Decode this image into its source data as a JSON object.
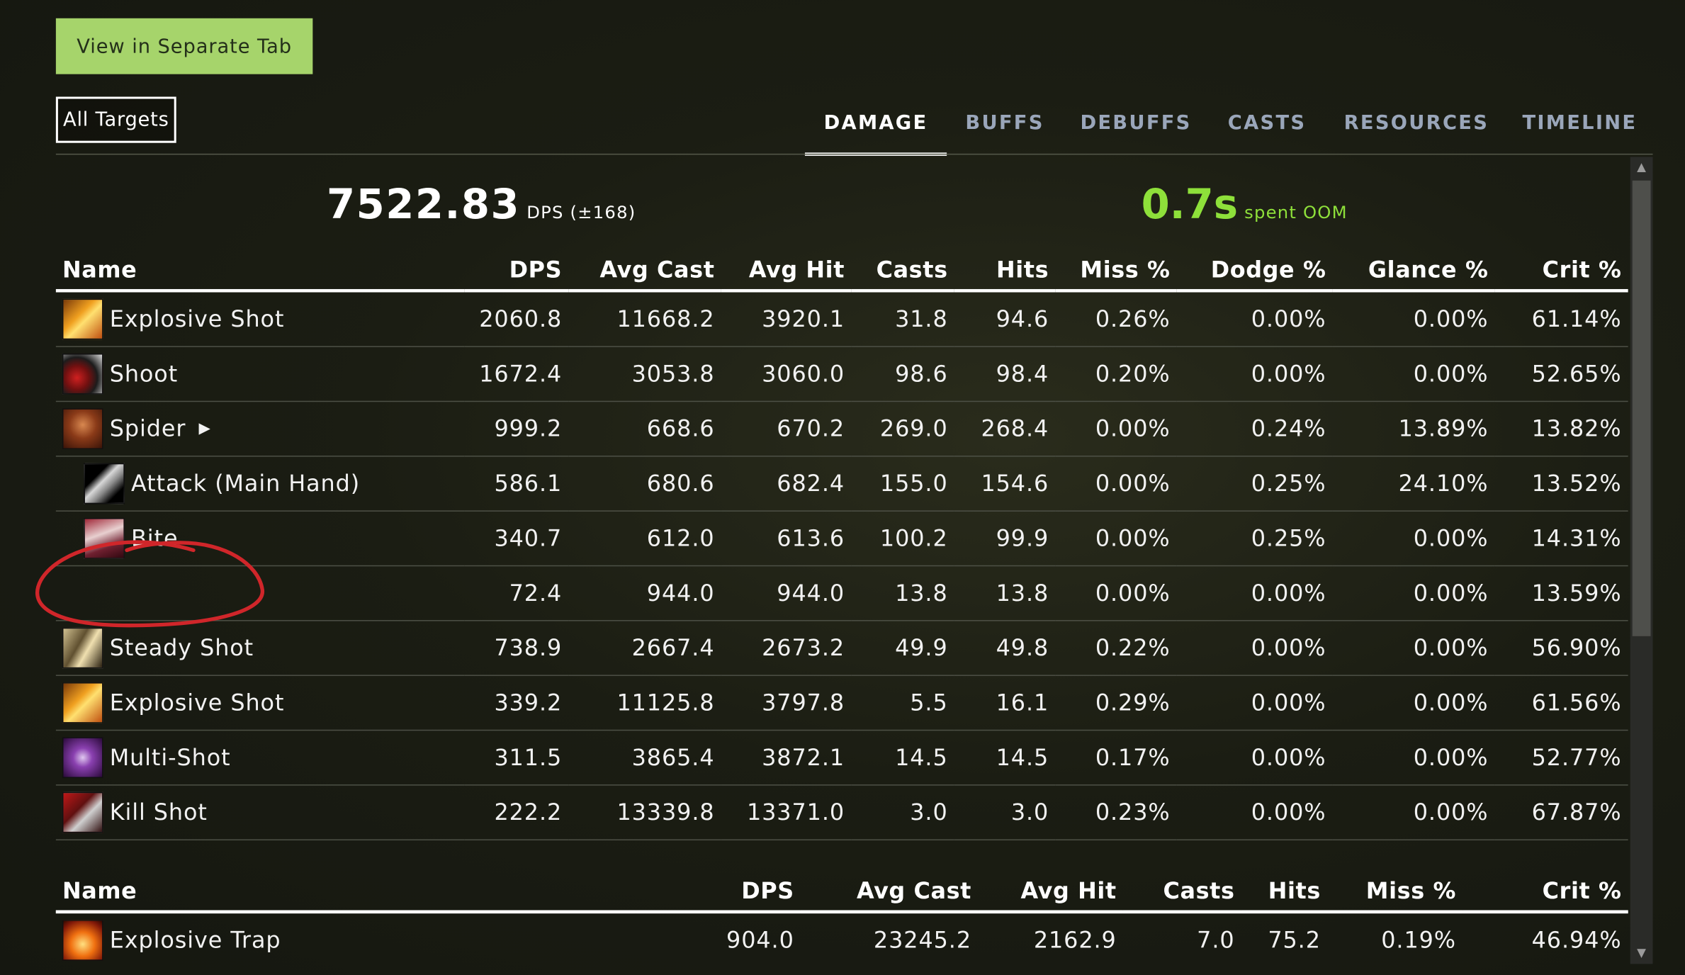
{
  "header": {
    "separate_tab_label": "View in Separate Tab",
    "target_select": "All Targets"
  },
  "tabs": [
    {
      "label": "DAMAGE",
      "active": true
    },
    {
      "label": "BUFFS",
      "active": false
    },
    {
      "label": "DEBUFFS",
      "active": false
    },
    {
      "label": "CASTS",
      "active": false
    },
    {
      "label": "RESOURCES",
      "active": false
    },
    {
      "label": "TIMELINE",
      "active": false
    }
  ],
  "summary": {
    "dps": "7522.83",
    "dps_suffix": "DPS (±168)",
    "oom": "0.7s",
    "oom_suffix": "spent OOM"
  },
  "colors": {
    "accent_button": "#a6d46b",
    "oom_green": "#8ee03a",
    "annotation_red": "#d0262a"
  },
  "damage_table": {
    "columns": [
      "Name",
      "DPS",
      "Avg Cast",
      "Avg Hit",
      "Casts",
      "Hits",
      "Miss %",
      "Dodge %",
      "Glance %",
      "Crit %"
    ],
    "rows": [
      {
        "name": "Explosive Shot",
        "icon": "explosive-shot-icon",
        "cells": [
          "2060.8",
          "11668.2",
          "3920.1",
          "31.8",
          "94.6",
          "0.26%",
          "0.00%",
          "0.00%",
          "61.14%"
        ]
      },
      {
        "name": "Shoot",
        "icon": "shoot-icon",
        "cells": [
          "1672.4",
          "3053.8",
          "3060.0",
          "98.6",
          "98.4",
          "0.20%",
          "0.00%",
          "0.00%",
          "52.65%"
        ]
      },
      {
        "name": "Spider",
        "icon": "spider-pet-icon",
        "expand": "▶",
        "cells": [
          "999.2",
          "668.6",
          "670.2",
          "269.0",
          "268.4",
          "0.00%",
          "0.24%",
          "13.89%",
          "13.82%"
        ]
      },
      {
        "name": "Attack (Main Hand)",
        "icon": "sword-attack-icon",
        "sub": true,
        "cells": [
          "586.1",
          "680.6",
          "682.4",
          "155.0",
          "154.6",
          "0.00%",
          "0.25%",
          "24.10%",
          "13.52%"
        ]
      },
      {
        "name": "Bite",
        "icon": "bite-icon",
        "sub": true,
        "cells": [
          "340.7",
          "612.0",
          "613.6",
          "100.2",
          "99.9",
          "0.00%",
          "0.25%",
          "0.00%",
          "14.31%"
        ]
      },
      {
        "name": "",
        "icon": "",
        "cells": [
          "72.4",
          "944.0",
          "944.0",
          "13.8",
          "13.8",
          "0.00%",
          "0.00%",
          "0.00%",
          "13.59%"
        ]
      },
      {
        "name": "Steady Shot",
        "icon": "steady-shot-icon",
        "cells": [
          "738.9",
          "2667.4",
          "2673.2",
          "49.9",
          "49.8",
          "0.22%",
          "0.00%",
          "0.00%",
          "56.90%"
        ]
      },
      {
        "name": "Explosive Shot",
        "icon": "explosive-shot-icon",
        "cells": [
          "339.2",
          "11125.8",
          "3797.8",
          "5.5",
          "16.1",
          "0.29%",
          "0.00%",
          "0.00%",
          "61.56%"
        ]
      },
      {
        "name": "Multi-Shot",
        "icon": "multi-shot-icon",
        "cells": [
          "311.5",
          "3865.4",
          "3872.1",
          "14.5",
          "14.5",
          "0.17%",
          "0.00%",
          "0.00%",
          "52.77%"
        ]
      },
      {
        "name": "Kill Shot",
        "icon": "kill-shot-icon",
        "cells": [
          "222.2",
          "13339.8",
          "13371.0",
          "3.0",
          "3.0",
          "0.23%",
          "0.00%",
          "0.00%",
          "67.87%"
        ]
      }
    ]
  },
  "aoe_table": {
    "columns": [
      "Name",
      "DPS",
      "Avg Cast",
      "Avg Hit",
      "Casts",
      "Hits",
      "Miss %",
      "Crit %"
    ],
    "rows": [
      {
        "name": "Explosive Trap",
        "icon": "explosive-trap-icon",
        "cells": [
          "904.0",
          "23245.2",
          "2162.9",
          "7.0",
          "75.2",
          "0.19%",
          "46.94%"
        ]
      }
    ]
  }
}
